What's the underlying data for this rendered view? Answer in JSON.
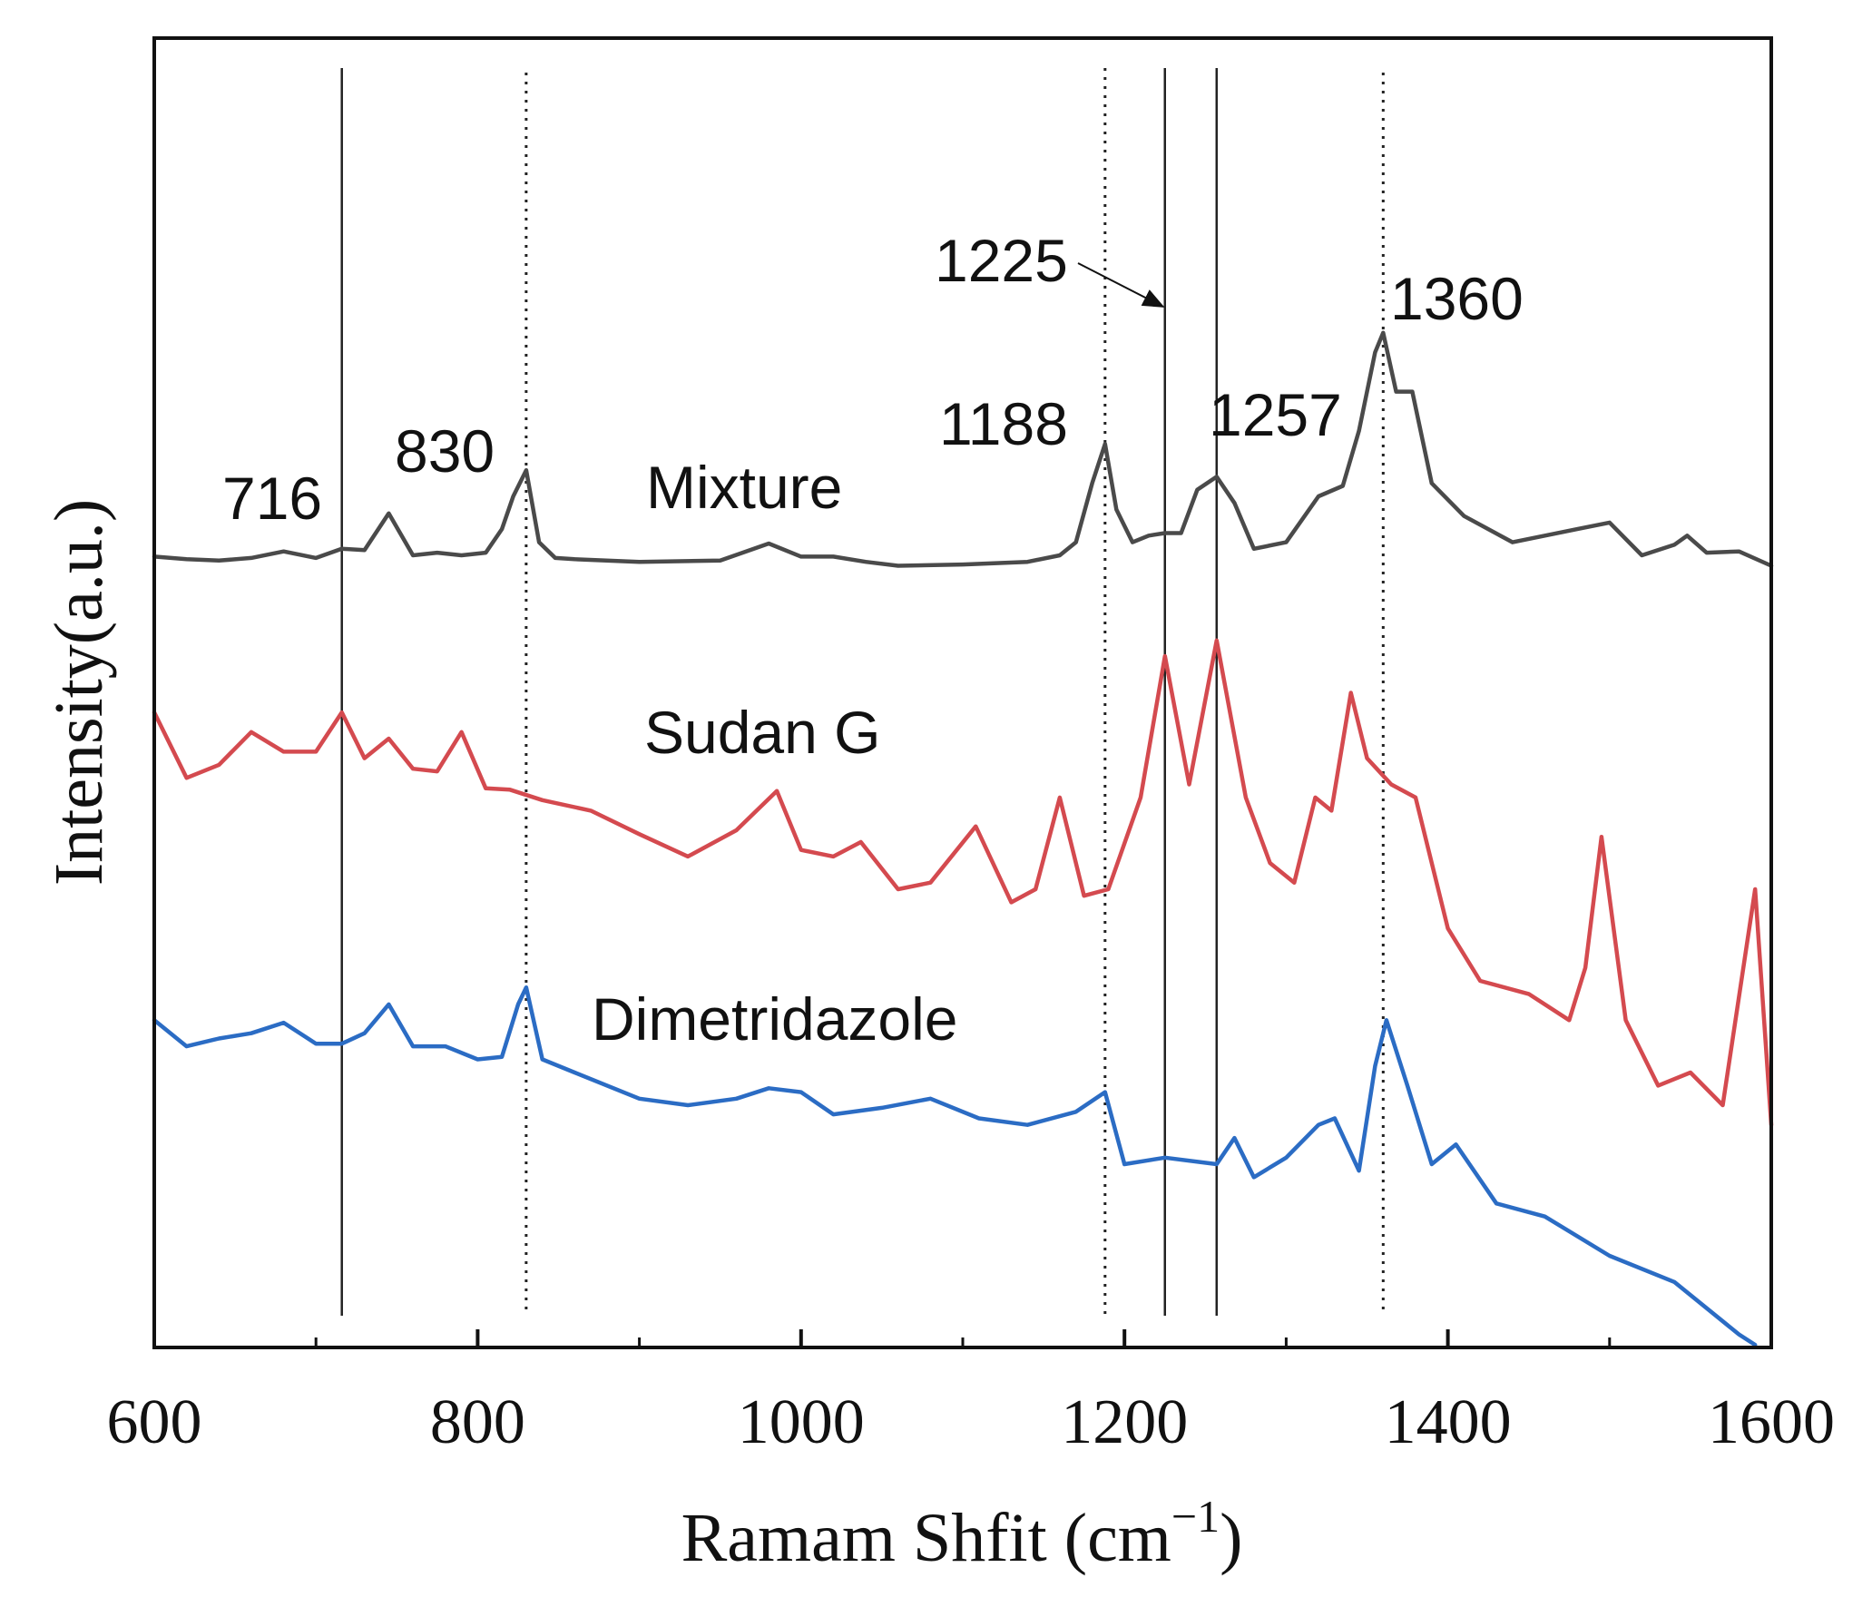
{
  "chart_data": {
    "type": "line",
    "title": "",
    "xlabel": "Ramam Shfit (cm",
    "xlabel_sup": "−1",
    "xlabel_close": ")",
    "ylabel": "Intensity(a.u.)",
    "xlim": [
      600,
      1600
    ],
    "ylim": [
      0,
      1
    ],
    "x_ticks": [
      600,
      800,
      1000,
      1200,
      1400,
      1600
    ],
    "x_minor_ticks": [
      700,
      900,
      1100,
      1300,
      1500
    ],
    "y_ticks": [],
    "grid": false,
    "legend": "none",
    "series": [
      {
        "name": "Mixture",
        "color": "#4a4a4a",
        "x": [
          600,
          620,
          640,
          660,
          680,
          700,
          716,
          730,
          745,
          760,
          775,
          790,
          805,
          815,
          822,
          830,
          838,
          848,
          860,
          900,
          950,
          980,
          1000,
          1020,
          1040,
          1060,
          1100,
          1140,
          1160,
          1170,
          1180,
          1188,
          1195,
          1205,
          1215,
          1225,
          1235,
          1245,
          1257,
          1268,
          1280,
          1300,
          1320,
          1335,
          1345,
          1355,
          1360,
          1368,
          1378,
          1390,
          1410,
          1440,
          1480,
          1500,
          1520,
          1540,
          1548,
          1560,
          1580,
          1600
        ],
        "y": [
          0.604,
          0.602,
          0.601,
          0.603,
          0.608,
          0.603,
          0.61,
          0.609,
          0.637,
          0.605,
          0.607,
          0.605,
          0.607,
          0.625,
          0.65,
          0.67,
          0.615,
          0.603,
          0.602,
          0.6,
          0.601,
          0.614,
          0.604,
          0.604,
          0.6,
          0.597,
          0.598,
          0.6,
          0.605,
          0.615,
          0.66,
          0.69,
          0.64,
          0.615,
          0.62,
          0.622,
          0.622,
          0.655,
          0.665,
          0.645,
          0.61,
          0.615,
          0.65,
          0.658,
          0.7,
          0.76,
          0.775,
          0.73,
          0.73,
          0.66,
          0.635,
          0.615,
          0.625,
          0.63,
          0.605,
          0.613,
          0.62,
          0.607,
          0.608,
          0.597
        ]
      },
      {
        "name": "Sudan G",
        "color": "#d44a4f",
        "x": [
          600,
          620,
          640,
          660,
          680,
          700,
          716,
          730,
          745,
          760,
          775,
          790,
          805,
          820,
          840,
          870,
          900,
          930,
          960,
          985,
          1000,
          1020,
          1037,
          1060,
          1080,
          1108,
          1130,
          1145,
          1160,
          1175,
          1190,
          1210,
          1225,
          1240,
          1257,
          1275,
          1290,
          1305,
          1318,
          1328,
          1340,
          1350,
          1365,
          1380,
          1400,
          1420,
          1450,
          1475,
          1485,
          1495,
          1510,
          1530,
          1550,
          1570,
          1590,
          1600
        ],
        "y": [
          0.485,
          0.435,
          0.445,
          0.47,
          0.455,
          0.455,
          0.485,
          0.45,
          0.465,
          0.442,
          0.44,
          0.47,
          0.427,
          0.426,
          0.418,
          0.41,
          0.392,
          0.375,
          0.395,
          0.425,
          0.38,
          0.375,
          0.386,
          0.35,
          0.355,
          0.398,
          0.34,
          0.35,
          0.42,
          0.345,
          0.35,
          0.42,
          0.528,
          0.43,
          0.54,
          0.42,
          0.37,
          0.355,
          0.42,
          0.41,
          0.5,
          0.45,
          0.43,
          0.42,
          0.32,
          0.28,
          0.27,
          0.25,
          0.29,
          0.39,
          0.25,
          0.2,
          0.21,
          0.185,
          0.35,
          0.17
        ]
      },
      {
        "name": "Dimetridazole",
        "color": "#2b6cc4",
        "x": [
          600,
          620,
          640,
          660,
          680,
          700,
          716,
          730,
          745,
          760,
          780,
          800,
          815,
          825,
          830,
          840,
          860,
          900,
          930,
          960,
          980,
          1000,
          1020,
          1050,
          1080,
          1110,
          1140,
          1170,
          1188,
          1200,
          1225,
          1257,
          1268,
          1280,
          1300,
          1320,
          1330,
          1345,
          1355,
          1362,
          1375,
          1390,
          1405,
          1430,
          1460,
          1500,
          1540,
          1580,
          1590
        ],
        "y": [
          0.25,
          0.23,
          0.236,
          0.24,
          0.248,
          0.232,
          0.232,
          0.24,
          0.262,
          0.23,
          0.23,
          0.22,
          0.222,
          0.262,
          0.275,
          0.22,
          0.21,
          0.19,
          0.185,
          0.19,
          0.198,
          0.195,
          0.178,
          0.183,
          0.19,
          0.175,
          0.17,
          0.18,
          0.195,
          0.14,
          0.145,
          0.14,
          0.16,
          0.13,
          0.145,
          0.17,
          0.175,
          0.135,
          0.215,
          0.25,
          0.2,
          0.14,
          0.155,
          0.11,
          0.1,
          0.07,
          0.05,
          0.01,
          0.002
        ]
      }
    ],
    "reference_lines": [
      {
        "x": 716,
        "style": "solid"
      },
      {
        "x": 830,
        "style": "dotted"
      },
      {
        "x": 1188,
        "style": "dotted"
      },
      {
        "x": 1225,
        "style": "solid"
      },
      {
        "x": 1257,
        "style": "solid"
      },
      {
        "x": 1360,
        "style": "dotted"
      }
    ],
    "annotations": [
      {
        "text": "716",
        "x": 716
      },
      {
        "text": "830",
        "x": 830
      },
      {
        "text": "1188",
        "x": 1188
      },
      {
        "text": "1225",
        "x": 1225,
        "arrow": true
      },
      {
        "text": "1257",
        "x": 1257
      },
      {
        "text": "1360",
        "x": 1360
      }
    ]
  }
}
